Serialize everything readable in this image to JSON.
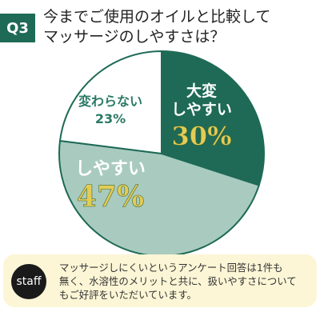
{
  "header": {
    "badge": "Q3",
    "question_line1": "今までご使用のオイルと比較して",
    "question_line2": "マッサージのしやすさは？"
  },
  "colors": {
    "very_easy": "#1e6a56",
    "easy": "#a9cbbf",
    "unchanged": "#ffffff",
    "pie_border": "#1e6a56",
    "percent_text": "#e3cc55",
    "note_bg": "#fcf6d6"
  },
  "chart_data": {
    "type": "pie",
    "title": "",
    "slices": [
      {
        "label_lines": [
          "大変",
          "しやすい"
        ],
        "value": 30,
        "value_label": "30%"
      },
      {
        "label_lines": [
          "しやすい"
        ],
        "value": 47,
        "value_label": "47%"
      },
      {
        "label_lines": [
          "変わらない"
        ],
        "value": 23,
        "value_label": "23%"
      }
    ]
  },
  "note": {
    "badge": "staff",
    "lines": [
      "マッサージしにくいというアンケート回答は1件も",
      "無く、水溶性のメリットと共に、扱いやすさについて",
      "もご好評をいただいています。"
    ]
  }
}
